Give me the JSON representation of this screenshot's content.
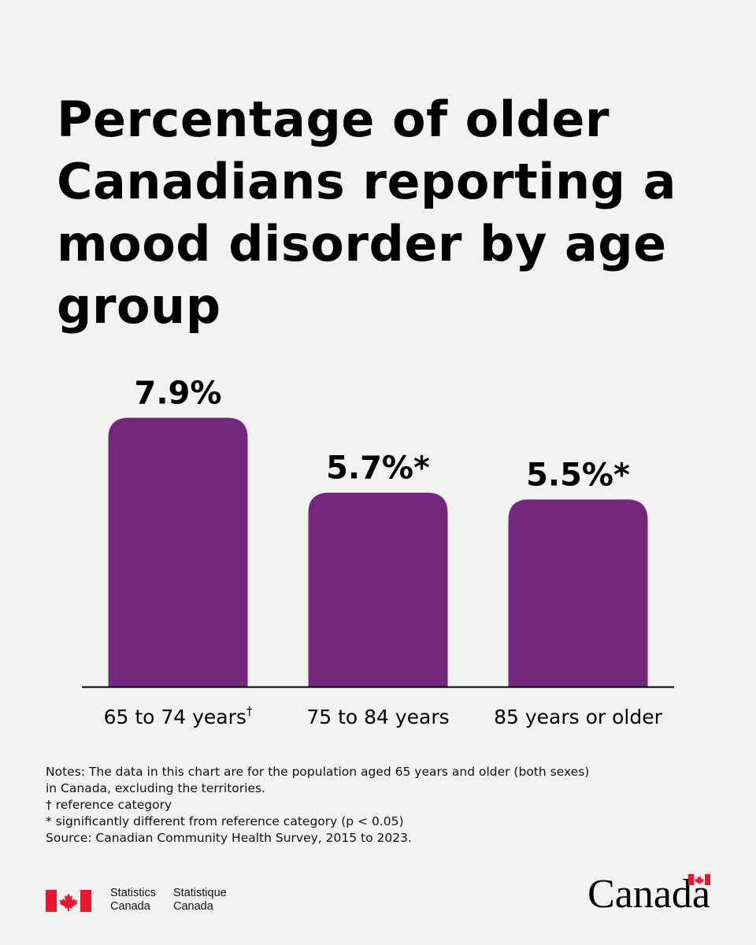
{
  "title": "Percentage of older Canadians reporting a mood disorder by age group",
  "chart_data": {
    "type": "bar",
    "categories": [
      "65 to 74 years",
      "75 to 84 years",
      "85 years or older"
    ],
    "category_marks": [
      "†",
      "",
      ""
    ],
    "values": [
      7.9,
      5.7,
      5.5
    ],
    "value_labels": [
      "7.9%",
      "5.7%*",
      "5.5%*"
    ],
    "bar_color": "#74287d",
    "ylim": [
      0,
      9.3
    ],
    "grid": false
  },
  "notes": [
    "Notes: The data in this chart are for the population aged 65 years and older (both sexes)",
    "in Canada, excluding the territories.",
    "† reference category",
    "* significantly different from reference category (p < 0.05)",
    "Source: Canadian Community Health Survey, 2015 to 2023."
  ],
  "footer": {
    "signature_en": [
      "Statistics",
      "Canada"
    ],
    "signature_fr": [
      "Statistique",
      "Canada"
    ],
    "wordmark": "Canada",
    "flag_color": "#e8192c"
  }
}
